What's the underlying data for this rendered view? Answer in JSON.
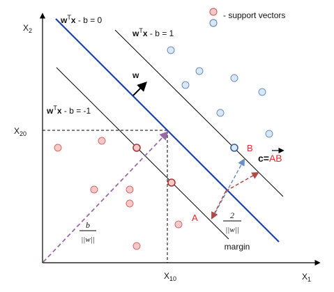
{
  "legend": {
    "label": "- support vectors",
    "red_fill": "#f6c9c9",
    "red_stroke": "#d46a6a",
    "blue_fill": "#d9e8f8",
    "blue_stroke": "#6c8ebf"
  },
  "axes": {
    "x_axis_name": "X",
    "x_axis_sub": "1",
    "y_axis_name": "X",
    "y_axis_sub": "2",
    "x_tick_name": "X",
    "x_tick_sub": "10",
    "y_tick_name": "X",
    "y_tick_sub": "20"
  },
  "hyperplanes": {
    "main": {
      "pre": "w",
      "sup": "T",
      "bold": "x",
      "post": " - b = 0"
    },
    "positive": {
      "pre": "w",
      "sup": "T",
      "bold": "x",
      "post": " - b = 1"
    },
    "negative": {
      "pre": "w",
      "sup": "T",
      "bold": "x",
      "post": " - b = -1"
    }
  },
  "vector_w": {
    "label": "w"
  },
  "distance_b": {
    "numerator": "b",
    "denominator": "||w||"
  },
  "margin": {
    "numerator": "2",
    "denominator": "||w||",
    "label": "margin"
  },
  "points": {
    "A": "A",
    "B": "B",
    "c_prefix": "c=",
    "c_value": "AB"
  },
  "colors": {
    "main_line": "#1a3fb8",
    "dash_purple": "#9a6aa8",
    "dash_blue": "#6a8ec8",
    "dash_red": "#b04a4a"
  }
}
